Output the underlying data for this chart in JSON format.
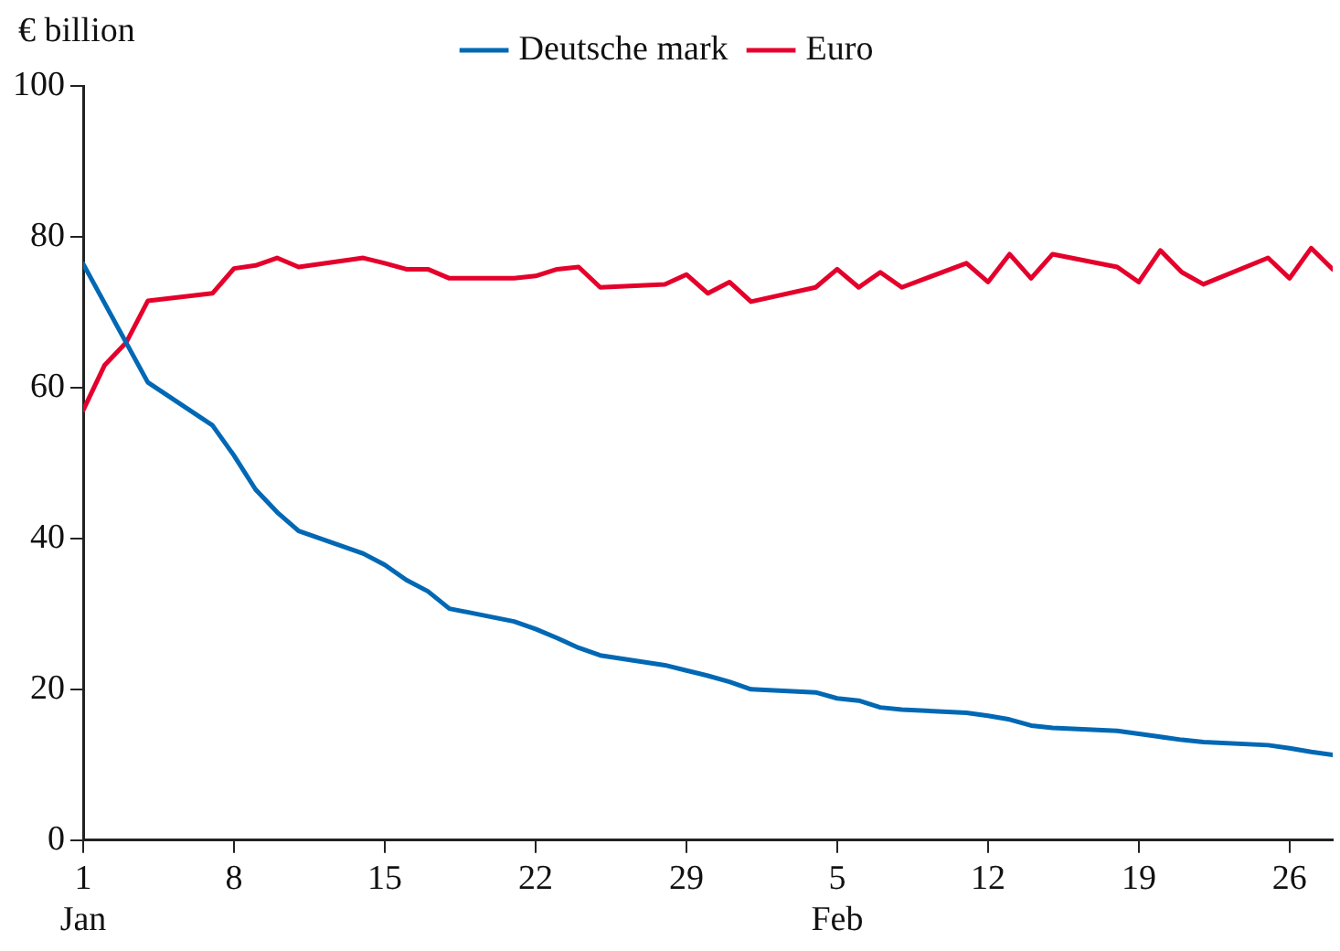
{
  "chart_data": {
    "type": "line",
    "ylabel": "€ billion",
    "legend": "top",
    "grid": false,
    "marker": "none",
    "line_style": "solid",
    "xlim": [
      "--01-01",
      "--02-28"
    ],
    "ylim": [
      0,
      100
    ],
    "yticks": [
      0,
      20,
      40,
      60,
      80,
      100
    ],
    "xticks": [
      {
        "value": "--01-01",
        "label": "1\nJan"
      },
      {
        "value": "--01-08",
        "label": "8"
      },
      {
        "value": "--01-15",
        "label": "15"
      },
      {
        "value": "--01-22",
        "label": "22"
      },
      {
        "value": "--01-29",
        "label": "29"
      },
      {
        "value": "--02-05",
        "label": "5\nFeb"
      },
      {
        "value": "--02-12",
        "label": "12"
      },
      {
        "value": "--02-19",
        "label": "19"
      },
      {
        "value": "--02-26",
        "label": "26"
      }
    ],
    "series": [
      {
        "name": "Deutsche mark",
        "color": "#0068b4",
        "x": [
          "--01-01",
          "--01-04",
          "--01-07",
          "--01-08",
          "--01-09",
          "--01-10",
          "--01-11",
          "--01-14",
          "--01-15",
          "--01-16",
          "--01-17",
          "--01-18",
          "--01-21",
          "--01-22",
          "--01-23",
          "--01-24",
          "--01-25",
          "--01-28",
          "--01-29",
          "--01-30",
          "--01-31",
          "--02-01",
          "--02-04",
          "--02-05",
          "--02-06",
          "--02-07",
          "--02-08",
          "--02-11",
          "--02-12",
          "--02-13",
          "--02-14",
          "--02-15",
          "--02-18",
          "--02-19",
          "--02-20",
          "--02-21",
          "--02-22",
          "--02-25",
          "--02-26",
          "--02-27",
          "--02-28"
        ],
        "values": [
          76.4,
          60.7,
          55,
          51,
          46.5,
          43.5,
          41,
          38,
          36.5,
          34.5,
          33,
          30.7,
          29,
          28,
          26.8,
          25.5,
          24.5,
          23.2,
          22.5,
          21.8,
          21,
          20,
          19.6,
          18.8,
          18.5,
          17.6,
          17.3,
          16.9,
          16.5,
          16,
          15.2,
          14.9,
          14.5,
          14.1,
          13.7,
          13.3,
          13,
          12.6,
          12.2,
          11.7,
          11.3
        ]
      },
      {
        "name": "Euro",
        "color": "#e4002b",
        "x": [
          "--01-01",
          "--01-02",
          "--01-03",
          "--01-04",
          "--01-07",
          "--01-08",
          "--01-09",
          "--01-10",
          "--01-11",
          "--01-14",
          "--01-15",
          "--01-16",
          "--01-17",
          "--01-18",
          "--01-21",
          "--01-22",
          "--01-23",
          "--01-24",
          "--01-25",
          "--01-28",
          "--01-29",
          "--01-30",
          "--01-31",
          "--02-01",
          "--02-04",
          "--02-05",
          "--02-06",
          "--02-07",
          "--02-08",
          "--02-11",
          "--02-12",
          "--02-13",
          "--02-14",
          "--02-15",
          "--02-18",
          "--02-19",
          "--02-20",
          "--02-21",
          "--02-22",
          "--02-25",
          "--02-26",
          "--02-27",
          "--02-28"
        ],
        "values": [
          57,
          63,
          66,
          71.5,
          72.5,
          75.8,
          76.2,
          77.2,
          76,
          77.2,
          76.5,
          75.7,
          75.7,
          74.5,
          74.5,
          74.8,
          75.7,
          76,
          73.3,
          73.7,
          75,
          72.5,
          74,
          71.4,
          73.3,
          75.7,
          73.3,
          75.3,
          73.3,
          76.5,
          74,
          77.7,
          74.5,
          77.7,
          76,
          74,
          78.2,
          75.3,
          73.7,
          77.2,
          74.5,
          78.5,
          75.7
        ]
      }
    ]
  }
}
